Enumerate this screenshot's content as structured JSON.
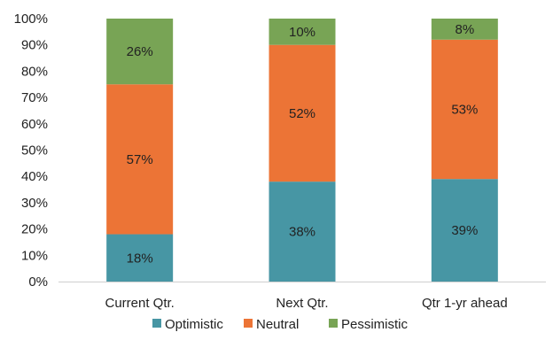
{
  "chart_data": {
    "type": "bar",
    "stacked": true,
    "percent": true,
    "categories": [
      "Current Qtr.",
      "Next Qtr.",
      "Qtr 1-yr ahead"
    ],
    "series": [
      {
        "name": "Optimistic",
        "values": [
          18,
          38,
          39
        ],
        "labels": [
          "18%",
          "38%",
          "39%"
        ],
        "color": "#4796A4"
      },
      {
        "name": "Neutral",
        "values": [
          57,
          52,
          53
        ],
        "labels": [
          "57%",
          "52%",
          "53%"
        ],
        "color": "#EC7436"
      },
      {
        "name": "Pessimistic",
        "values": [
          26,
          10,
          8
        ],
        "labels": [
          "26%",
          "10%",
          "8%"
        ],
        "color": "#78A455"
      }
    ],
    "ylim": [
      0,
      100
    ],
    "yticks": [
      "0%",
      "10%",
      "20%",
      "30%",
      "40%",
      "50%",
      "60%",
      "70%",
      "80%",
      "90%",
      "100%"
    ],
    "grid": false,
    "legend_position": "bottom"
  }
}
